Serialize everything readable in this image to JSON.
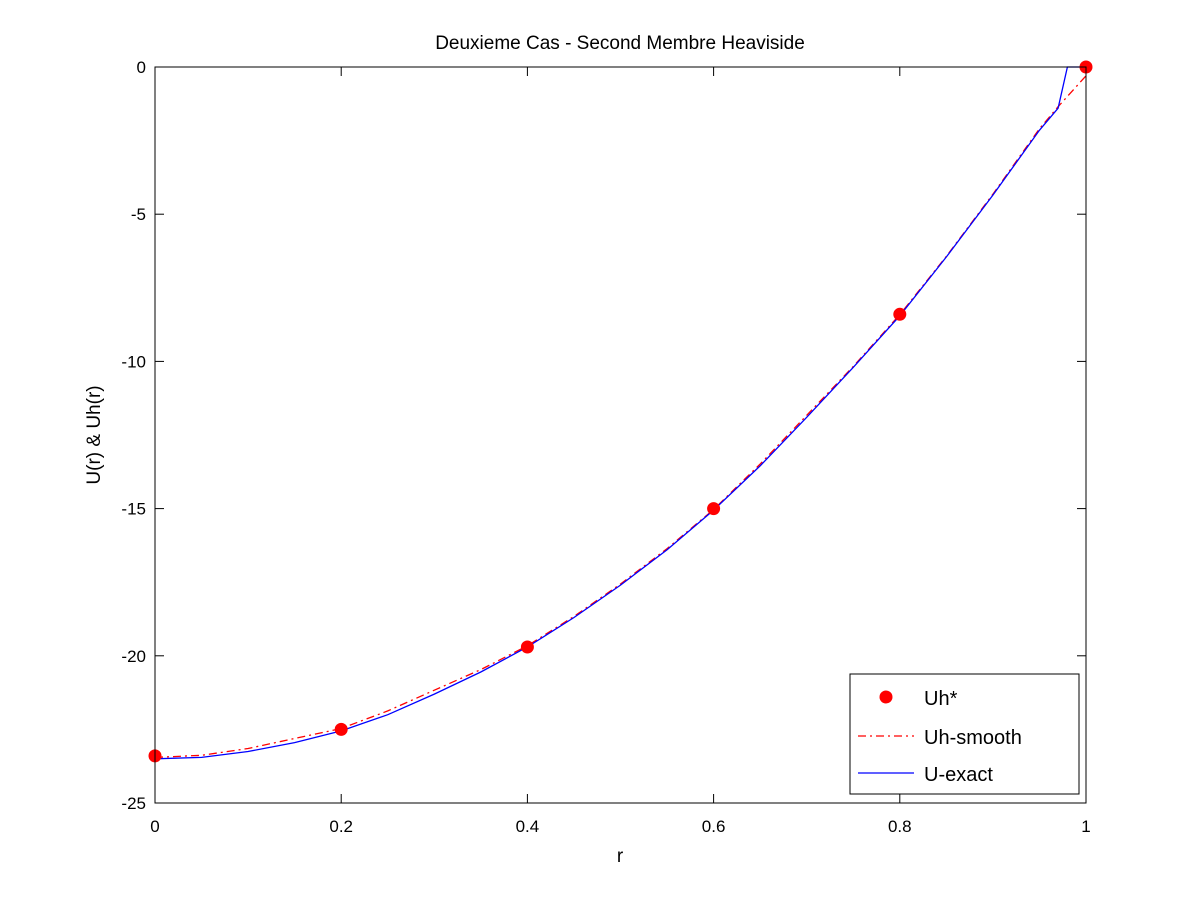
{
  "chart_data": {
    "type": "line",
    "title": "Deuxieme Cas - Second Membre Heaviside",
    "xlabel": "r",
    "ylabel": "U(r) & Uh(r)",
    "xlim": [
      0,
      1
    ],
    "ylim": [
      -25,
      0
    ],
    "xticks": [
      0,
      0.2,
      0.4,
      0.6,
      0.8,
      1
    ],
    "xtick_labels": [
      "0",
      "0.2",
      "0.4",
      "0.6",
      "0.8",
      "1"
    ],
    "yticks": [
      0,
      -5,
      -10,
      -15,
      -20,
      -25
    ],
    "ytick_labels": [
      "0",
      "-5",
      "-10",
      "-15",
      "-20",
      "-25"
    ],
    "grid": false,
    "legend_position": "bottom-right",
    "series": [
      {
        "name": "Uh*",
        "style": "markers",
        "color": "#ff0000",
        "x": [
          0,
          0.2,
          0.4,
          0.6,
          0.8,
          1.0
        ],
        "y": [
          -23.4,
          -22.5,
          -19.7,
          -15.0,
          -8.4,
          0.0
        ]
      },
      {
        "name": "Uh-smooth",
        "style": "dash-dot",
        "color": "#ff0000",
        "x": [
          0,
          0.05,
          0.1,
          0.15,
          0.2,
          0.25,
          0.3,
          0.35,
          0.4,
          0.45,
          0.5,
          0.55,
          0.6,
          0.65,
          0.7,
          0.75,
          0.8,
          0.85,
          0.9,
          0.95,
          0.97,
          1.0
        ],
        "y": [
          -23.45,
          -23.38,
          -23.15,
          -22.81,
          -22.47,
          -21.87,
          -21.17,
          -20.47,
          -19.66,
          -18.66,
          -17.56,
          -16.36,
          -15.03,
          -13.49,
          -11.83,
          -10.17,
          -8.41,
          -6.43,
          -4.32,
          -2.1,
          -1.35,
          -0.3
        ]
      },
      {
        "name": "U-exact",
        "style": "solid",
        "color": "#0000ff",
        "x": [
          0,
          0.05,
          0.1,
          0.15,
          0.2,
          0.25,
          0.3,
          0.35,
          0.4,
          0.45,
          0.5,
          0.55,
          0.6,
          0.65,
          0.7,
          0.75,
          0.8,
          0.85,
          0.9,
          0.95,
          0.97,
          0.98,
          1.0
        ],
        "y": [
          -23.5,
          -23.45,
          -23.25,
          -22.95,
          -22.55,
          -22.0,
          -21.3,
          -20.55,
          -19.7,
          -18.7,
          -17.6,
          -16.4,
          -15.05,
          -13.55,
          -11.9,
          -10.2,
          -8.45,
          -6.45,
          -4.35,
          -2.15,
          -1.4,
          0.0,
          0.0
        ]
      }
    ]
  }
}
